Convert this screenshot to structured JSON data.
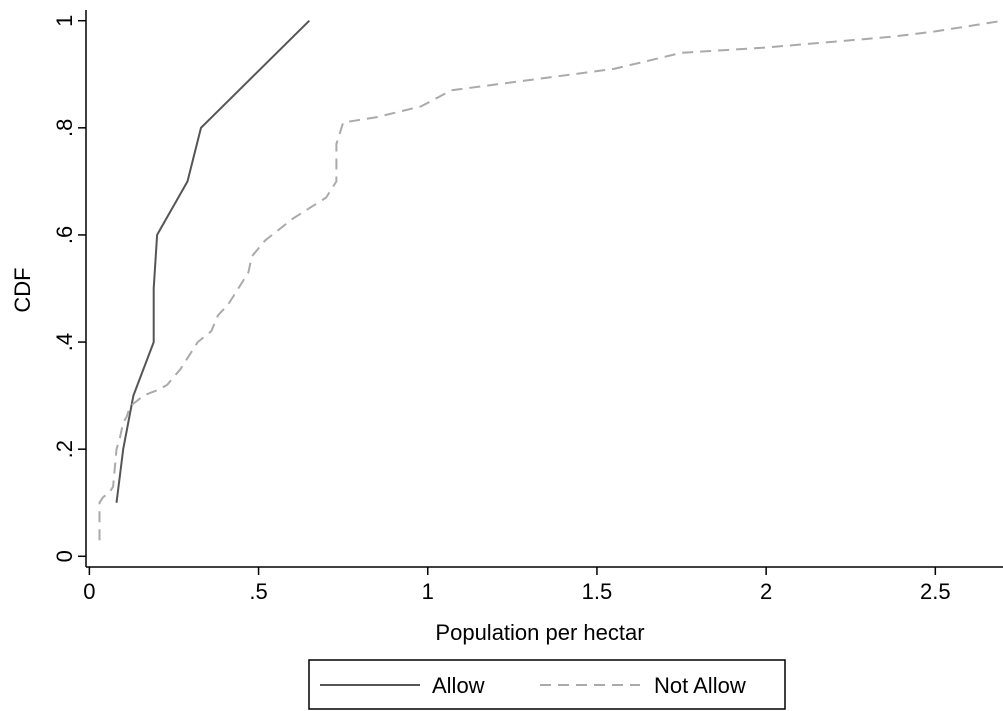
{
  "chart_data": {
    "type": "line",
    "title": "",
    "xlabel": "Population per hectar",
    "ylabel": "CDF",
    "xlim": [
      -0.01,
      2.7
    ],
    "ylim": [
      -0.02,
      1.02
    ],
    "x_ticks": [
      0,
      0.5,
      1,
      1.5,
      2,
      2.5
    ],
    "x_tick_labels": [
      "0",
      ".5",
      "1",
      "1.5",
      "2",
      "2.5"
    ],
    "y_ticks": [
      0,
      0.2,
      0.4,
      0.6,
      0.8,
      1
    ],
    "y_tick_labels": [
      "0",
      ".2",
      ".4",
      ".6",
      ".8",
      "1"
    ],
    "grid": false,
    "legend_position": "bottom",
    "series": [
      {
        "name": "Allow",
        "color": "#555555",
        "style": "solid",
        "x": [
          0.08,
          0.1,
          0.13,
          0.19,
          0.19,
          0.2,
          0.29,
          0.33,
          0.65
        ],
        "y": [
          0.1,
          0.2,
          0.3,
          0.4,
          0.5,
          0.6,
          0.7,
          0.8,
          1.0
        ]
      },
      {
        "name": "Not Allow",
        "color": "#aaaaaa",
        "style": "dashed",
        "x": [
          0.03,
          0.03,
          0.04,
          0.06,
          0.07,
          0.08,
          0.09,
          0.1,
          0.11,
          0.12,
          0.14,
          0.16,
          0.2,
          0.23,
          0.27,
          0.3,
          0.32,
          0.36,
          0.38,
          0.41,
          0.44,
          0.47,
          0.48,
          0.52,
          0.56,
          0.6,
          0.65,
          0.7,
          0.73,
          0.73,
          0.75,
          0.85,
          0.98,
          1.07,
          1.55,
          1.75,
          2.0,
          2.37,
          2.5,
          2.7
        ],
        "y": [
          0.03,
          0.1,
          0.11,
          0.12,
          0.13,
          0.2,
          0.22,
          0.25,
          0.26,
          0.28,
          0.29,
          0.3,
          0.31,
          0.32,
          0.35,
          0.38,
          0.4,
          0.42,
          0.45,
          0.47,
          0.5,
          0.53,
          0.56,
          0.59,
          0.61,
          0.63,
          0.65,
          0.67,
          0.7,
          0.77,
          0.81,
          0.82,
          0.84,
          0.87,
          0.91,
          0.94,
          0.95,
          0.97,
          0.98,
          1.0
        ]
      }
    ]
  }
}
